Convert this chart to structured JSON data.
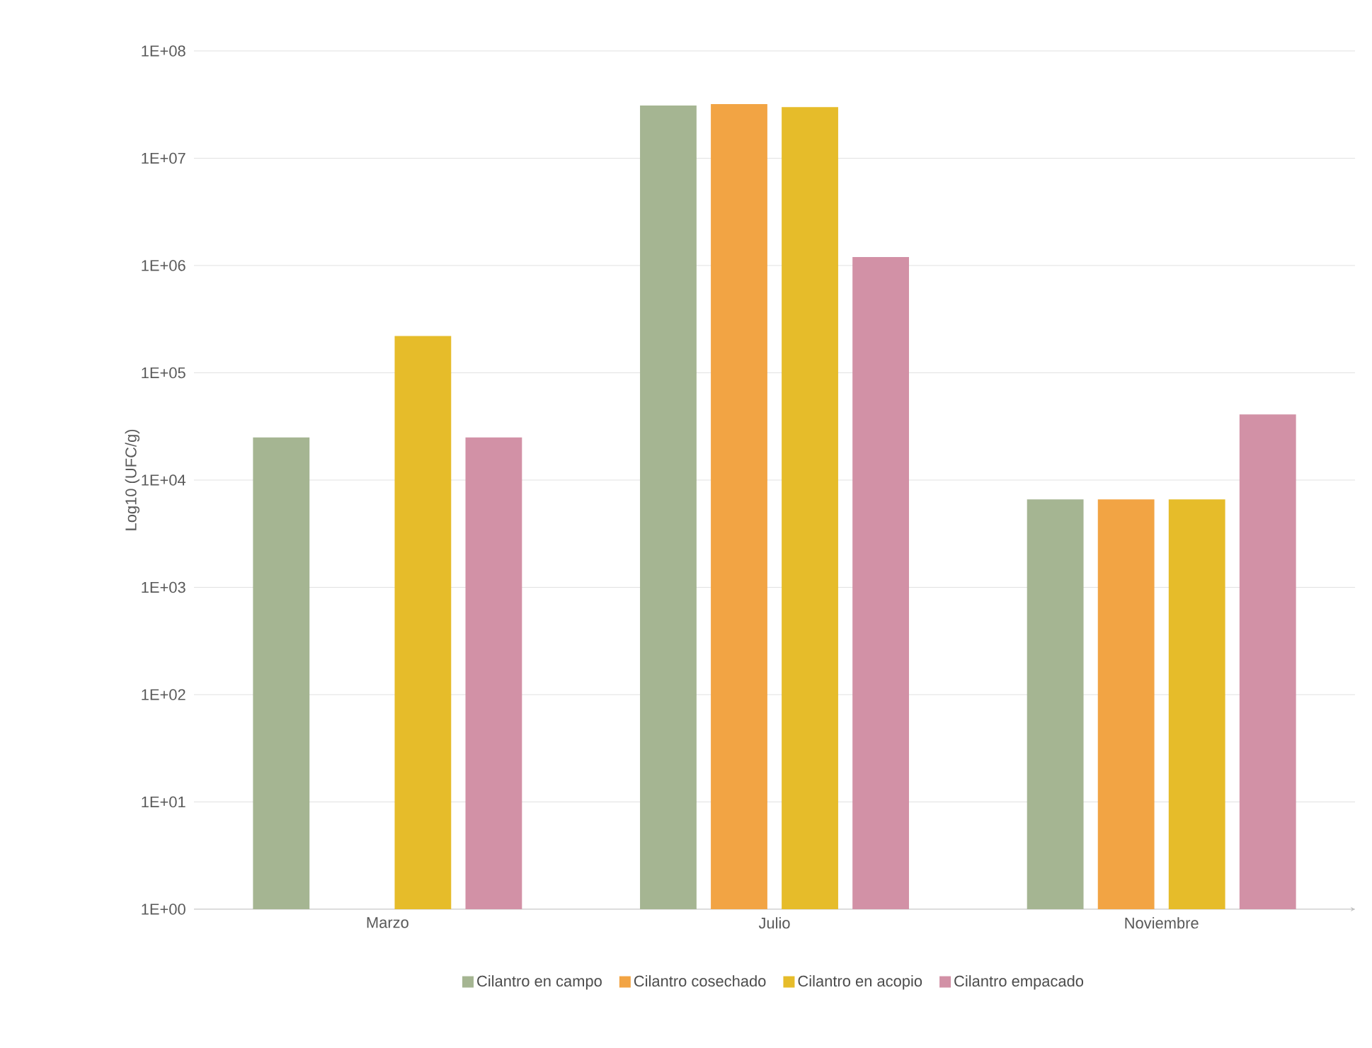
{
  "chart_data": {
    "type": "bar",
    "ylabel": "Log10 (UFC/g)",
    "log": "y",
    "grid": "y",
    "legend": "bottom",
    "categories": [
      "Marzo",
      "Julio",
      "Noviembre"
    ],
    "ylim": [
      1,
      100000000
    ],
    "yticks": [
      {
        "value": 1,
        "label": "1E+00"
      },
      {
        "value": 10,
        "label": "1E+01"
      },
      {
        "value": 100,
        "label": "1E+02"
      },
      {
        "value": 1000,
        "label": "1E+03"
      },
      {
        "value": 10000,
        "label": "1E+04"
      },
      {
        "value": 100000,
        "label": "1E+05"
      },
      {
        "value": 1000000,
        "label": "1E+06"
      },
      {
        "value": 10000000,
        "label": "1E+07"
      },
      {
        "value": 100000000,
        "label": "1E+08"
      }
    ],
    "series": [
      {
        "name": "Cilantro en campo",
        "color": "#a5b592",
        "values": [
          25000,
          31000000,
          6600
        ]
      },
      {
        "name": "Cilantro cosechado",
        "color": "#f2a444",
        "values": [
          null,
          32000000,
          6600
        ]
      },
      {
        "name": "Cilantro en acopio",
        "color": "#e6bc2a",
        "values": [
          220000,
          30000000,
          6600
        ]
      },
      {
        "name": "Cilantro empacado",
        "color": "#d291a6",
        "values": [
          25000,
          1200000,
          41000
        ]
      }
    ]
  }
}
